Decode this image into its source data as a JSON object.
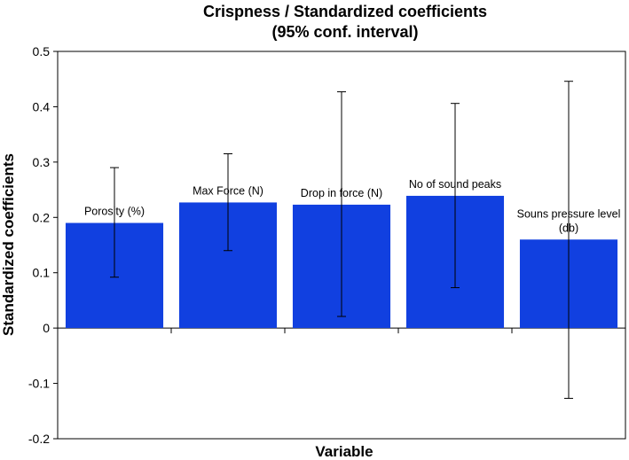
{
  "chart_data": {
    "type": "bar",
    "title_lines": [
      "Crispness / Standardized coefficients",
      "(95% conf. interval)"
    ],
    "xlabel": "Variable",
    "ylabel": "Standardized coefficients",
    "ylim": [
      -0.2,
      0.5
    ],
    "yticks": [
      "0.5",
      "0.4",
      "0.3",
      "0.2",
      "0.1",
      "0",
      "-0.1",
      "-0.2"
    ],
    "ytick_values": [
      0.5,
      0.4,
      0.3,
      0.2,
      0.1,
      0,
      -0.1,
      -0.2
    ],
    "categories": [
      {
        "label_lines": [
          "Porosity (%)"
        ],
        "value": 0.19,
        "ci_low": 0.092,
        "ci_high": 0.29
      },
      {
        "label_lines": [
          "Max Force (N)"
        ],
        "value": 0.227,
        "ci_low": 0.14,
        "ci_high": 0.315
      },
      {
        "label_lines": [
          "Drop in force (N)"
        ],
        "value": 0.223,
        "ci_low": 0.021,
        "ci_high": 0.427
      },
      {
        "label_lines": [
          "No of sound peaks"
        ],
        "value": 0.239,
        "ci_low": 0.073,
        "ci_high": 0.406
      },
      {
        "label_lines": [
          "Souns pressure level",
          "(db)"
        ],
        "value": 0.16,
        "ci_low": -0.127,
        "ci_high": 0.446
      }
    ],
    "bar_color": "#1140e0",
    "grid": false
  }
}
